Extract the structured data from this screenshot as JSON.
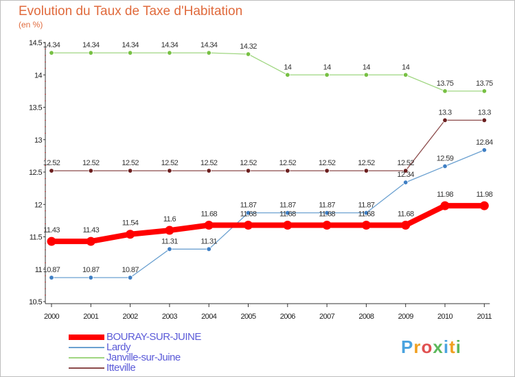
{
  "title": "Evolution du Taux de Taxe d'Habitation",
  "unit": "(en %)",
  "logo": {
    "text": "Proxiti",
    "letter_colors": [
      "#4aa3df",
      "#f0a020",
      "#e05050",
      "#5cb85c",
      "#4aa3df",
      "#f0a020",
      "#5cb85c"
    ]
  },
  "chart_data": {
    "type": "line",
    "title": "Evolution du Taux de Taxe d'Habitation",
    "ylabel": "(en %)",
    "xlabel": "",
    "x": [
      "2000",
      "2001",
      "2002",
      "2003",
      "2004",
      "2005",
      "2006",
      "2007",
      "2008",
      "2009",
      "2010",
      "2011"
    ],
    "ylim": [
      10.5,
      14.5
    ],
    "yticks": [
      "10.5",
      "11",
      "11.5",
      "12",
      "12.5",
      "13",
      "13.5",
      "14",
      "14.5"
    ],
    "grid": false,
    "legend_position": "bottom-left",
    "series": [
      {
        "name": "BOURAY-SUR-JUINE",
        "color": "#ff0000",
        "values": [
          11.43,
          11.43,
          11.54,
          11.6,
          11.68,
          11.68,
          11.68,
          11.68,
          11.68,
          11.68,
          11.98,
          11.98
        ],
        "labels": [
          "11.43",
          "11.43",
          "11.54",
          "11.6",
          "11.68",
          "11.68",
          "11.68",
          "11.68",
          "11.68",
          "11.68",
          "11.98",
          "11.98"
        ]
      },
      {
        "name": "Lardy",
        "color": "#6aa0d0",
        "marker": "#3f7fc4",
        "values": [
          10.87,
          10.87,
          10.87,
          11.31,
          11.31,
          11.87,
          11.87,
          11.87,
          11.87,
          12.34,
          12.59,
          12.84
        ],
        "labels": [
          "10.87",
          "10.87",
          "10.87",
          "11.31",
          "11.31",
          "11.87",
          "11.87",
          "11.87",
          "11.87",
          "12.34",
          "12.59",
          "12.84"
        ]
      },
      {
        "name": "Janville-sur-Juine",
        "color": "#9fd680",
        "marker": "#77c043",
        "values": [
          14.34,
          14.34,
          14.34,
          14.34,
          14.34,
          14.32,
          14,
          14,
          14,
          14,
          13.75,
          13.75
        ],
        "labels": [
          "14.34",
          "14.34",
          "14.34",
          "14.34",
          "14.34",
          "14.32",
          "14",
          "14",
          "14",
          "14",
          "13.75",
          "13.75"
        ]
      },
      {
        "name": "Itteville",
        "color": "#8b4a4a",
        "marker": "#6b1f1f",
        "values": [
          12.52,
          12.52,
          12.52,
          12.52,
          12.52,
          12.52,
          12.52,
          12.52,
          12.52,
          12.52,
          13.3,
          13.3
        ],
        "labels": [
          "12.52",
          "12.52",
          "12.52",
          "12.52",
          "12.52",
          "12.52",
          "12.52",
          "12.52",
          "12.52",
          "12.52",
          "13.3",
          "13.3"
        ]
      }
    ]
  }
}
